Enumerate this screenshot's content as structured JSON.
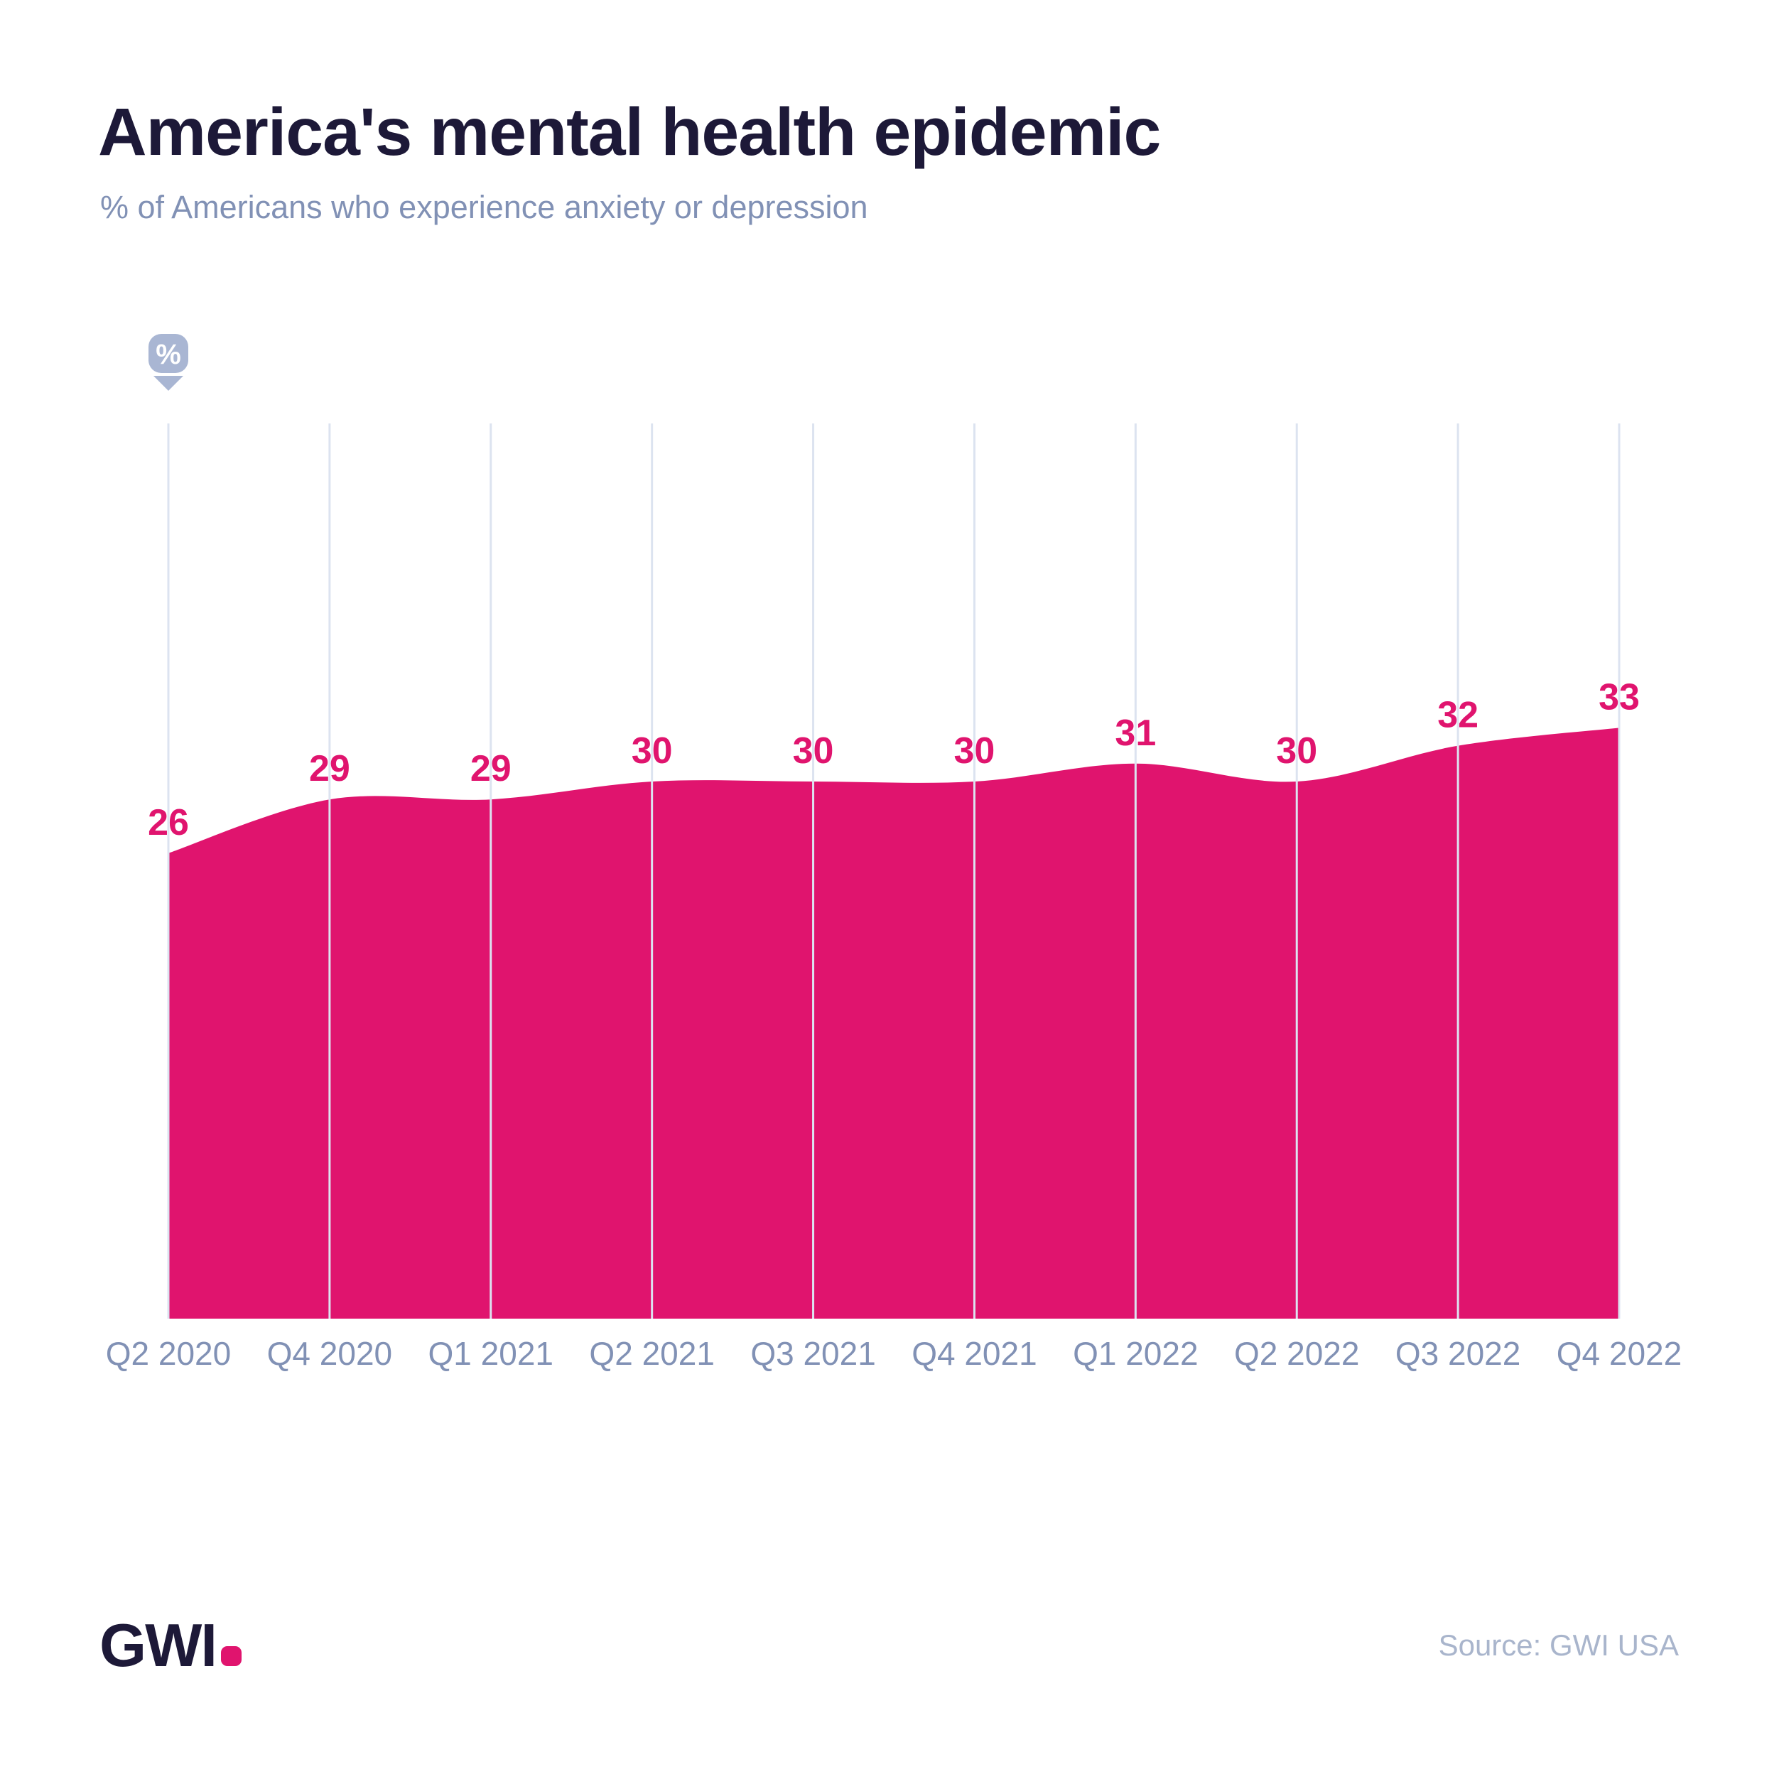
{
  "header": {
    "title": "America's mental health epidemic",
    "subtitle": "% of Americans who experience anxiety or depression"
  },
  "chart_data": {
    "type": "area",
    "title": "America's mental health epidemic",
    "subtitle": "% of Americans who experience anxiety or depression",
    "categories": [
      "Q2 2020",
      "Q4 2020",
      "Q1 2021",
      "Q2 2021",
      "Q3 2021",
      "Q4 2021",
      "Q1 2022",
      "Q2 2022",
      "Q3 2022",
      "Q4 2022"
    ],
    "values": [
      26,
      29,
      29,
      30,
      30,
      30,
      31,
      30,
      32,
      33
    ],
    "unit": "%",
    "ylim": [
      0,
      50
    ],
    "grid": "vertical-only",
    "legend": "none",
    "data_labels": true,
    "smoothing": "spline",
    "axis_icon": "percent-pin-icon",
    "colors": {
      "area": "#e0146e",
      "value_label": "#e0146e",
      "gridline": "#dce3f0",
      "axis_label": "#8191b5",
      "icon": "#a9b6d3",
      "icon_glyph": "#ffffff"
    }
  },
  "footer": {
    "logo_text": "GWI",
    "source": "Source: GWI USA"
  },
  "colors": {
    "background": "#ffffff",
    "title_text": "#1d1938",
    "subtitle_text": "#8191b5",
    "accent_pink": "#e0146e"
  }
}
